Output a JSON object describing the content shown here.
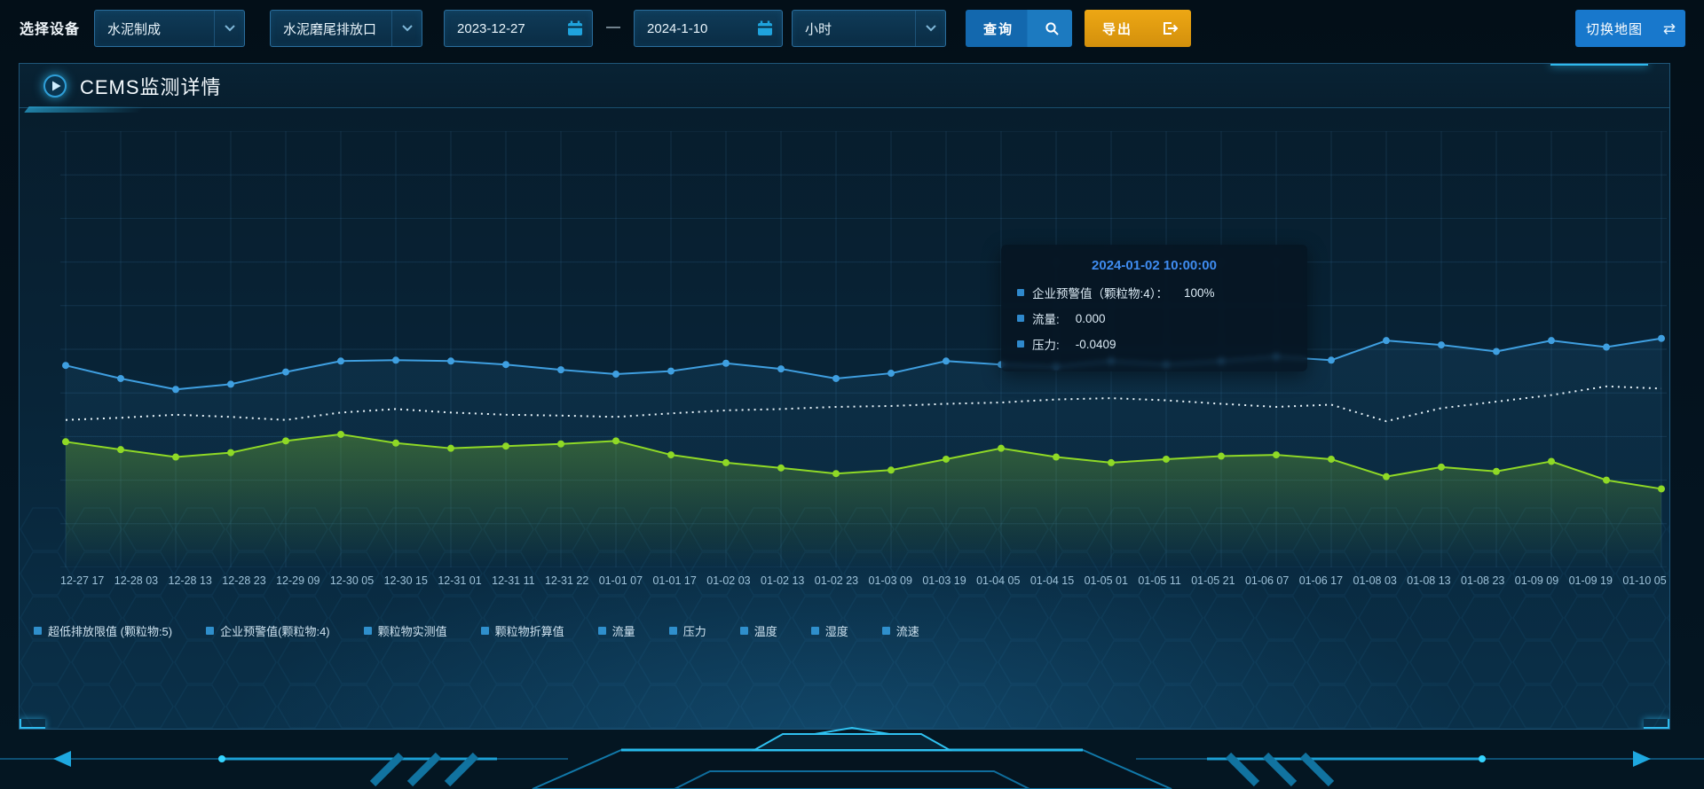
{
  "toolbar": {
    "device_label": "选择设备",
    "device_type_value": "水泥制成",
    "outlet_value": "水泥磨尾排放口",
    "date_from": "2023-12-27",
    "date_separator": "—",
    "date_to": "2024-1-10",
    "interval_value": "小时",
    "query_label": "查询",
    "export_label": "导出",
    "switch_map_label": "切换地图"
  },
  "panel": {
    "title": "CEMS监测详情"
  },
  "tooltip": {
    "title": "2024-01-02 10:00:00",
    "items": [
      {
        "label": "企业预警值（颗粒物:4）：",
        "value": "100%"
      },
      {
        "label": "流量:",
        "value": "0.000"
      },
      {
        "label": "压力:",
        "value": "-0.0409"
      }
    ]
  },
  "legend": {
    "marker_color": "#2f8fcc",
    "items": [
      "超低排放限值 (颗粒物:5)",
      "企业预警值(颗粒物:4)",
      "颗粒物实测值",
      "颗粒物折算值",
      "流量",
      "压力",
      "温度",
      "湿度",
      "流速"
    ]
  },
  "chart_data": {
    "type": "line",
    "title": "",
    "xlabel": "",
    "ylabel": "",
    "ylim": [
      0,
      100
    ],
    "grid": true,
    "legend_position": "bottom",
    "categories": [
      "12-27 17",
      "12-28 03",
      "12-28 13",
      "12-28 23",
      "12-29 09",
      "12-30 05",
      "12-30 15",
      "12-31 01",
      "12-31 11",
      "12-31 22",
      "01-01 07",
      "01-01 17",
      "01-02 03",
      "01-02 13",
      "01-02 23",
      "01-03 09",
      "01-03 19",
      "01-04 05",
      "01-04 15",
      "01-05 01",
      "01-05 11",
      "01-05 21",
      "01-06 07",
      "01-06 17",
      "01-08 03",
      "01-08 13",
      "01-08 23",
      "01-09 09",
      "01-09 19",
      "01-10 05"
    ],
    "series": [
      {
        "name": "颗粒物实测值",
        "color": "#3f9fe0",
        "line_style": "solid",
        "markers": true,
        "area": true,
        "area_opacity": 0.1,
        "values": [
          46.3,
          43.3,
          40.8,
          42,
          44.8,
          47.3,
          47.5,
          47.3,
          46.5,
          45.3,
          44.3,
          45,
          46.8,
          45.5,
          43.3,
          44.5,
          47.3,
          46.5,
          46,
          47.3,
          46.5,
          47.3,
          48.3,
          47.5,
          52,
          51,
          49.5,
          52,
          50.5,
          52.5
        ]
      },
      {
        "name": "企业预警值(颗粒物:4)",
        "color": "#e8f4fa",
        "line_style": "dotted",
        "markers": false,
        "area": false,
        "area_opacity": 0,
        "values": [
          33.8,
          34.3,
          35,
          34.5,
          33.8,
          35.5,
          36.3,
          35.5,
          35,
          34.8,
          34.5,
          35.3,
          36,
          36.3,
          36.8,
          37,
          37.5,
          37.8,
          38.5,
          38.8,
          38.3,
          37.5,
          36.8,
          37.3,
          33.5,
          36.5,
          38,
          39.5,
          41.5,
          41
        ]
      },
      {
        "name": "颗粒物折算值",
        "color": "#8fd926",
        "line_style": "solid",
        "markers": true,
        "area": true,
        "area_opacity": 0.3,
        "values": [
          28.8,
          27,
          25.3,
          26.3,
          29,
          30.5,
          28.5,
          27.3,
          27.8,
          28.3,
          29,
          25.8,
          24,
          22.8,
          21.5,
          22.3,
          24.8,
          27.3,
          25.3,
          24,
          24.8,
          25.5,
          25.8,
          24.8,
          20.8,
          23,
          22,
          24.3,
          20,
          18
        ]
      }
    ]
  },
  "colors": {
    "accent_blue": "#1878cc",
    "accent_orange": "#e9a312",
    "tooltip_title": "#3f8cf0",
    "panel_border": "#1f5578",
    "grid_line": "rgba(70,140,190,0.18)"
  }
}
